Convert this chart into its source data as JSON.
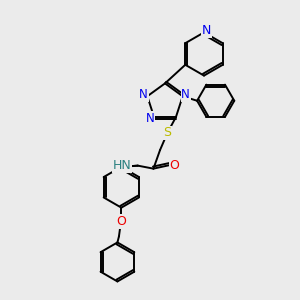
{
  "bg_color": "#ebebeb",
  "bond_color": "#000000",
  "atom_colors": {
    "N": "#0000ee",
    "O": "#ee0000",
    "S": "#bbbb00",
    "NH": "#2a8080",
    "C": "#000000"
  },
  "lw": 1.4,
  "fs": 8.5,
  "figsize": [
    3.0,
    3.0
  ],
  "dpi": 100,
  "xlim": [
    0,
    10
  ],
  "ylim": [
    0,
    10
  ]
}
